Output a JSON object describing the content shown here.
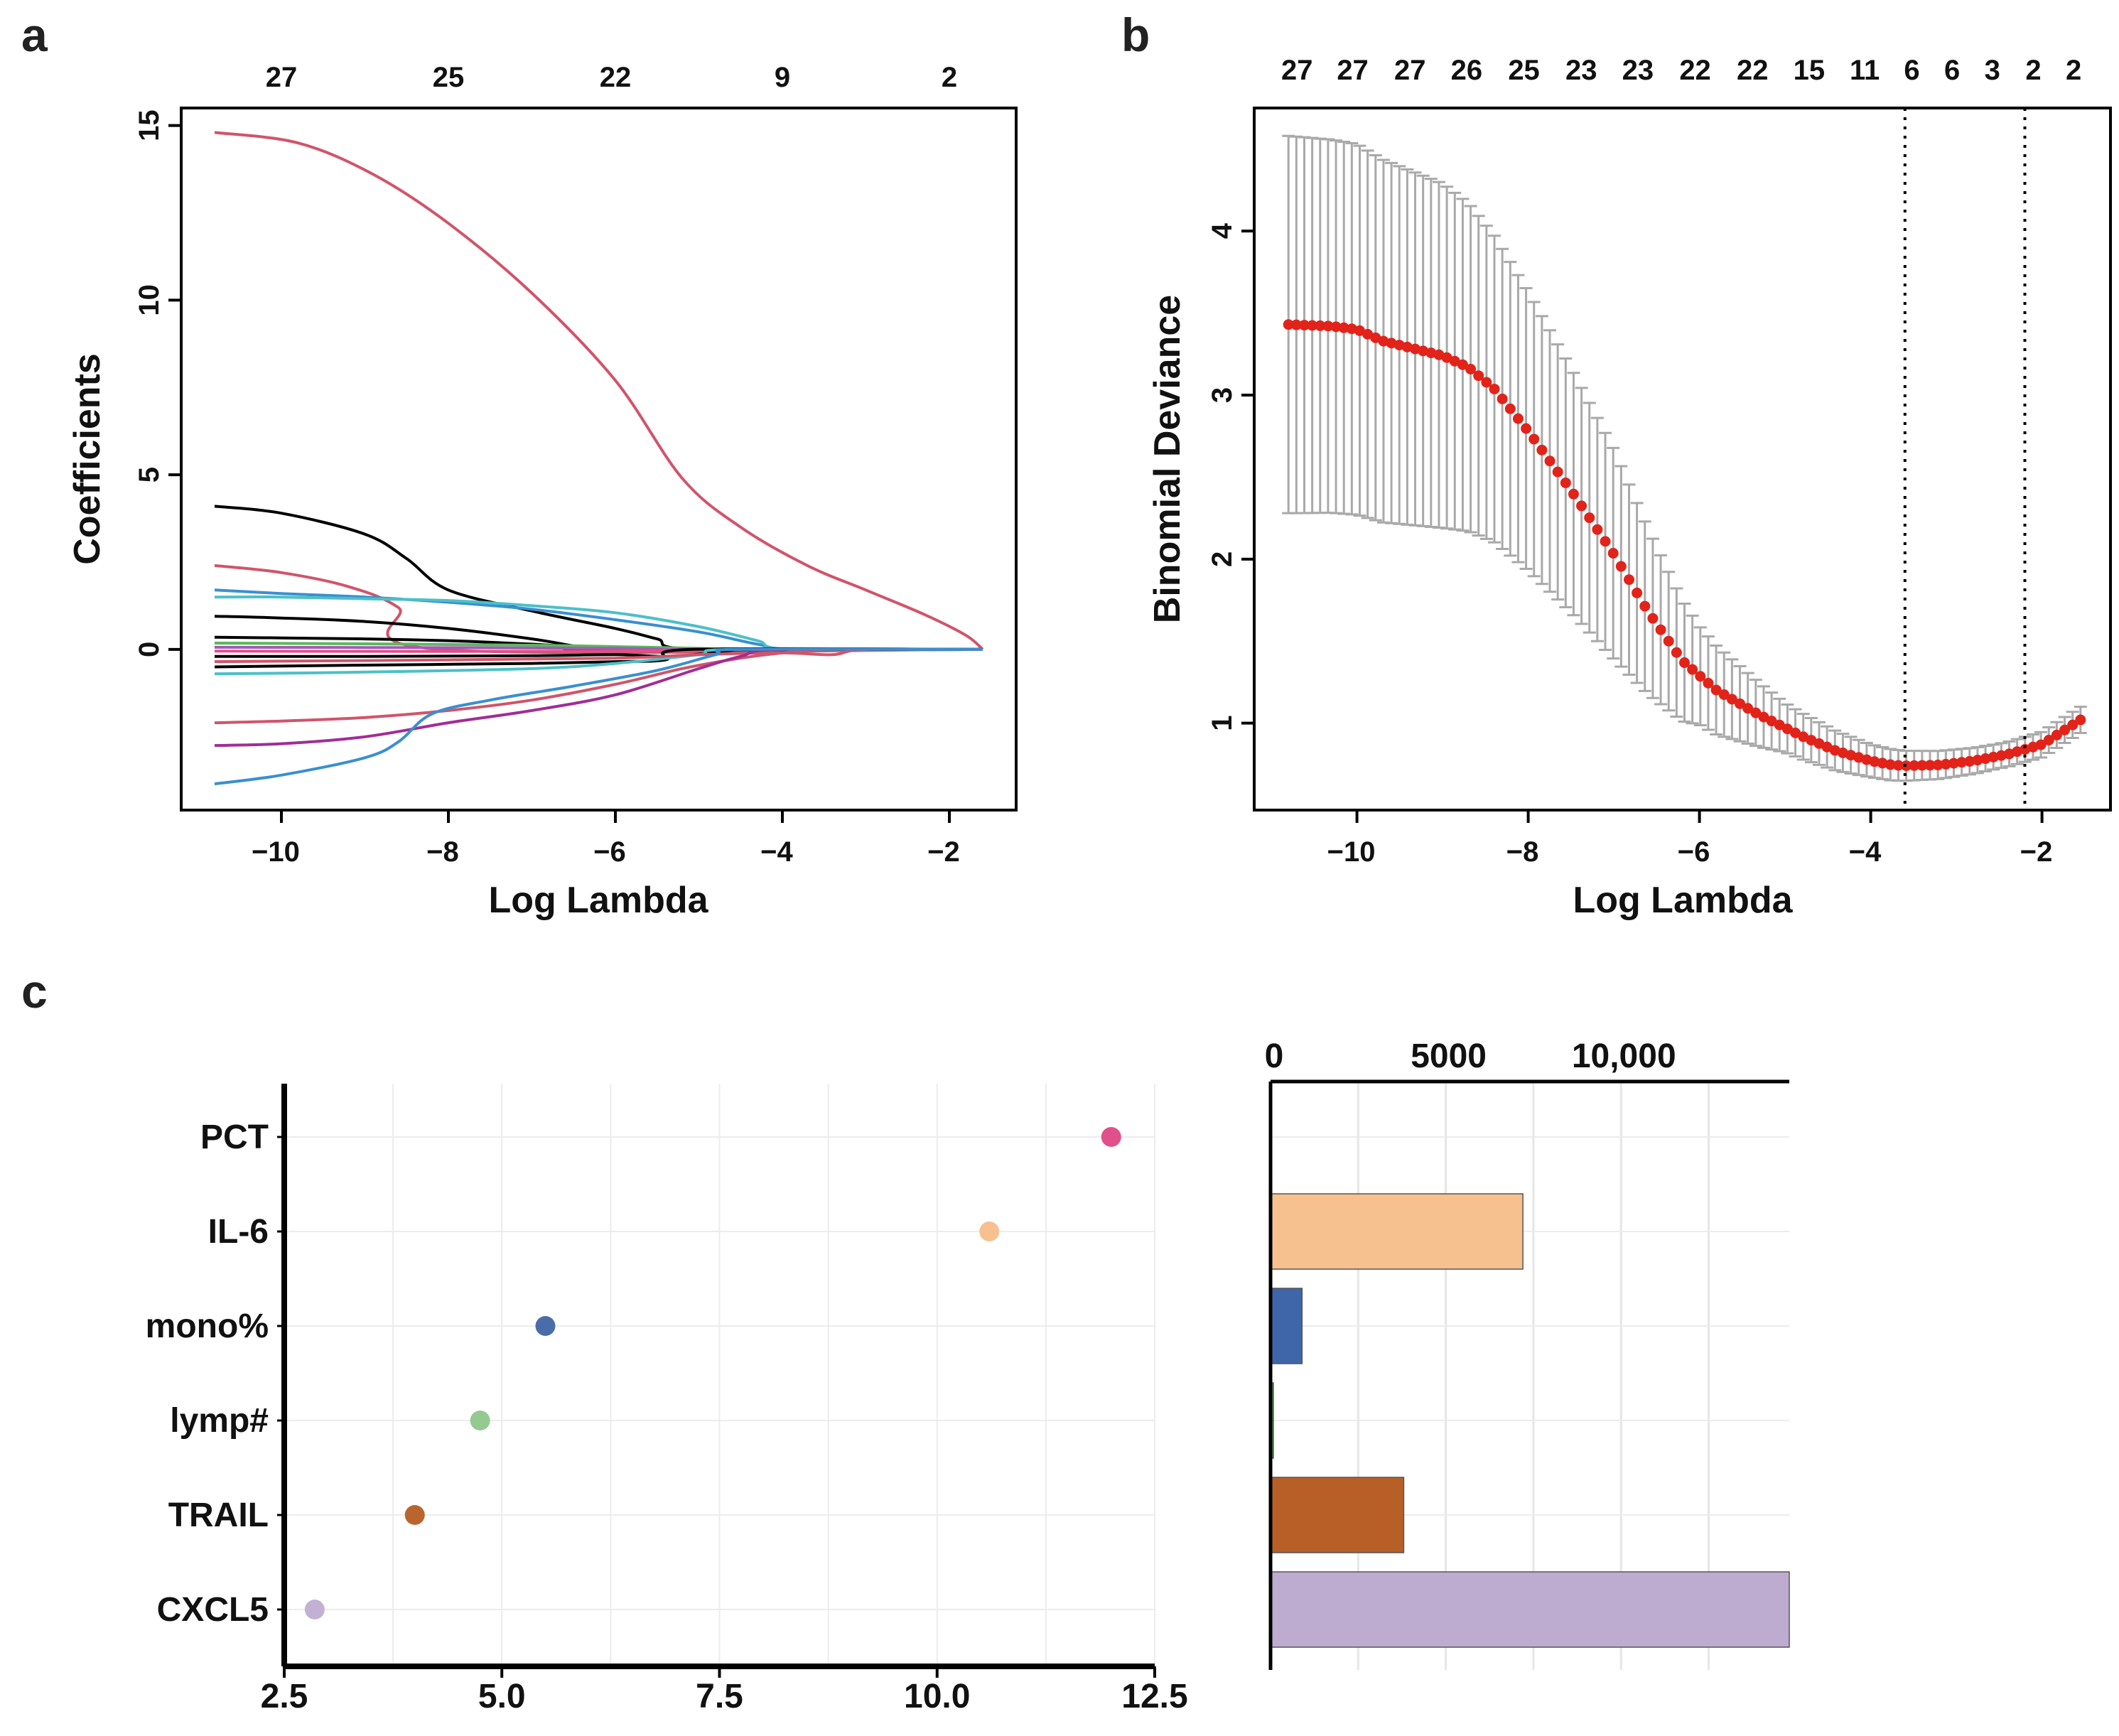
{
  "chart_data": [
    {
      "panel": "a",
      "type": "line",
      "xlabel": "Log Lambda",
      "ylabel": "Coefficients",
      "xlim": [
        -11.2,
        -1.2
      ],
      "ylim": [
        -4.6,
        15.5
      ],
      "x_ticks": [
        -10,
        -8,
        -6,
        -4,
        -2
      ],
      "x_tick_labels": [
        "−10",
        "−8",
        "−6",
        "−4",
        "−2"
      ],
      "y_ticks": [
        0,
        5,
        10,
        15
      ],
      "y_tick_labels": [
        "0",
        "5",
        "10",
        "15"
      ],
      "top_ticks": [
        -10,
        -8,
        -6,
        -4,
        -2
      ],
      "top_tick_labels": [
        "27",
        "25",
        "22",
        "9",
        "2"
      ],
      "series": [
        {
          "color": "#d1546a",
          "points": [
            [
              -10.8,
              14.8
            ],
            [
              -9.8,
              14.5
            ],
            [
              -8.9,
              13.6
            ],
            [
              -8.0,
              12.2
            ],
            [
              -7.0,
              10.2
            ],
            [
              -6.0,
              7.7
            ],
            [
              -5.2,
              4.9
            ],
            [
              -4.5,
              3.5
            ],
            [
              -3.7,
              2.4
            ],
            [
              -3.0,
              1.7
            ],
            [
              -2.3,
              1.0
            ],
            [
              -1.8,
              0.4
            ],
            [
              -1.6,
              0.0
            ]
          ]
        },
        {
          "color": "#000000",
          "points": [
            [
              -10.8,
              4.1
            ],
            [
              -10.0,
              3.9
            ],
            [
              -9.0,
              3.3
            ],
            [
              -8.5,
              2.6
            ],
            [
              -8.0,
              1.7
            ],
            [
              -7.0,
              1.1
            ],
            [
              -6.0,
              0.6
            ],
            [
              -5.5,
              0.3
            ],
            [
              -5.0,
              0.0
            ],
            [
              -1.6,
              0.0
            ]
          ]
        },
        {
          "color": "#d1546a",
          "points": [
            [
              -10.8,
              2.4
            ],
            [
              -10.0,
              2.2
            ],
            [
              -9.2,
              1.8
            ],
            [
              -8.6,
              1.2
            ],
            [
              -8.1,
              0.0
            ],
            [
              -1.6,
              0.0
            ]
          ]
        },
        {
          "color": "#3a8fd0",
          "points": [
            [
              -10.8,
              1.7
            ],
            [
              -10.0,
              1.6
            ],
            [
              -9.0,
              1.5
            ],
            [
              -8.0,
              1.35
            ],
            [
              -7.0,
              1.15
            ],
            [
              -6.0,
              0.85
            ],
            [
              -5.0,
              0.5
            ],
            [
              -4.3,
              0.15
            ],
            [
              -3.8,
              0.0
            ],
            [
              -1.6,
              0.0
            ]
          ]
        },
        {
          "color": "#4cc0c8",
          "points": [
            [
              -10.8,
              1.5
            ],
            [
              -10.0,
              1.5
            ],
            [
              -9.0,
              1.45
            ],
            [
              -8.0,
              1.4
            ],
            [
              -7.0,
              1.25
            ],
            [
              -6.0,
              1.05
            ],
            [
              -5.0,
              0.65
            ],
            [
              -4.3,
              0.25
            ],
            [
              -3.9,
              0.0
            ],
            [
              -1.6,
              0.0
            ]
          ]
        },
        {
          "color": "#000000",
          "points": [
            [
              -10.8,
              0.95
            ],
            [
              -10.0,
              0.9
            ],
            [
              -9.0,
              0.8
            ],
            [
              -8.0,
              0.6
            ],
            [
              -7.0,
              0.3
            ],
            [
              -6.5,
              0.1
            ],
            [
              -6.2,
              0.0
            ],
            [
              -1.6,
              0.0
            ]
          ]
        },
        {
          "color": "#000000",
          "points": [
            [
              -10.8,
              0.35
            ],
            [
              -10.0,
              0.33
            ],
            [
              -9.0,
              0.3
            ],
            [
              -8.0,
              0.25
            ],
            [
              -7.0,
              0.15
            ],
            [
              -6.3,
              0.05
            ],
            [
              -6.0,
              0.0
            ],
            [
              -1.6,
              0.0
            ]
          ]
        },
        {
          "color": "#5cb85c",
          "points": [
            [
              -10.8,
              0.18
            ],
            [
              -9.0,
              0.16
            ],
            [
              -7.0,
              0.12
            ],
            [
              -6.0,
              0.08
            ],
            [
              -5.0,
              0.03
            ],
            [
              -4.5,
              0.0
            ],
            [
              -1.6,
              0.0
            ]
          ]
        },
        {
          "color": "#a55ab5",
          "points": [
            [
              -10.8,
              0.06
            ],
            [
              -8.0,
              0.05
            ],
            [
              -6.0,
              0.03
            ],
            [
              -5.0,
              0.0
            ],
            [
              -1.6,
              0.0
            ]
          ]
        },
        {
          "color": "#e0508a",
          "points": [
            [
              -10.8,
              -0.05
            ],
            [
              -8.0,
              -0.06
            ],
            [
              -6.0,
              -0.05
            ],
            [
              -5.0,
              -0.02
            ],
            [
              -4.5,
              0.0
            ],
            [
              -1.6,
              0.0
            ]
          ]
        },
        {
          "color": "#000000",
          "points": [
            [
              -10.8,
              -0.2
            ],
            [
              -9.0,
              -0.2
            ],
            [
              -7.0,
              -0.18
            ],
            [
              -6.0,
              -0.15
            ],
            [
              -5.3,
              -0.2
            ],
            [
              -4.7,
              -0.05
            ],
            [
              -4.2,
              0.0
            ],
            [
              -1.6,
              0.0
            ]
          ]
        },
        {
          "color": "#000000",
          "points": [
            [
              -10.8,
              -0.5
            ],
            [
              -9.0,
              -0.45
            ],
            [
              -7.0,
              -0.4
            ],
            [
              -6.0,
              -0.35
            ],
            [
              -5.4,
              -0.3
            ],
            [
              -5.1,
              0.0
            ],
            [
              -1.6,
              0.0
            ]
          ]
        },
        {
          "color": "#4cc0c8",
          "points": [
            [
              -10.8,
              -0.7
            ],
            [
              -9.0,
              -0.65
            ],
            [
              -7.0,
              -0.55
            ],
            [
              -6.0,
              -0.4
            ],
            [
              -5.0,
              -0.15
            ],
            [
              -4.6,
              0.0
            ],
            [
              -1.6,
              0.0
            ]
          ]
        },
        {
          "color": "#d1546a",
          "points": [
            [
              -10.8,
              -0.35
            ],
            [
              -8.0,
              -0.3
            ],
            [
              -6.0,
              -0.25
            ],
            [
              -5.0,
              -0.15
            ],
            [
              -4.0,
              -0.1
            ],
            [
              -3.4,
              -0.15
            ],
            [
              -3.0,
              0.0
            ],
            [
              -1.6,
              0.0
            ]
          ]
        },
        {
          "color": "#d1546a",
          "points": [
            [
              -10.8,
              -2.1
            ],
            [
              -10.0,
              -2.05
            ],
            [
              -9.0,
              -1.95
            ],
            [
              -8.0,
              -1.75
            ],
            [
              -7.0,
              -1.45
            ],
            [
              -6.0,
              -1.0
            ],
            [
              -5.2,
              -0.55
            ],
            [
              -4.5,
              -0.25
            ],
            [
              -4.0,
              -0.1
            ],
            [
              -3.5,
              0.0
            ],
            [
              -1.6,
              0.0
            ]
          ]
        },
        {
          "color": "#a02d96",
          "points": [
            [
              -10.8,
              -2.75
            ],
            [
              -10.0,
              -2.7
            ],
            [
              -9.0,
              -2.5
            ],
            [
              -8.0,
              -2.1
            ],
            [
              -7.0,
              -1.75
            ],
            [
              -6.0,
              -1.3
            ],
            [
              -5.0,
              -0.55
            ],
            [
              -4.5,
              -0.2
            ],
            [
              -4.0,
              0.0
            ],
            [
              -1.6,
              0.0
            ]
          ]
        },
        {
          "color": "#3a8fd0",
          "points": [
            [
              -10.8,
              -3.85
            ],
            [
              -10.0,
              -3.6
            ],
            [
              -9.0,
              -3.1
            ],
            [
              -8.6,
              -2.65
            ],
            [
              -8.2,
              -1.85
            ],
            [
              -7.5,
              -1.45
            ],
            [
              -6.5,
              -1.05
            ],
            [
              -5.5,
              -0.6
            ],
            [
              -4.8,
              -0.15
            ],
            [
              -4.5,
              0.0
            ],
            [
              -1.6,
              0.0
            ]
          ]
        }
      ]
    },
    {
      "panel": "b",
      "type": "scatter",
      "xlabel": "Log Lambda",
      "ylabel": "Binomial Deviance",
      "xlim": [
        -11.2,
        -1.2
      ],
      "ylim": [
        0.47,
        4.75
      ],
      "x_ticks": [
        -10,
        -8,
        -6,
        -4,
        -2
      ],
      "x_tick_labels": [
        "−10",
        "−8",
        "−6",
        "−4",
        "−2"
      ],
      "y_ticks": [
        1,
        2,
        3,
        4
      ],
      "y_tick_labels": [
        "1",
        "2",
        "3",
        "4"
      ],
      "top_ticks": [
        -10.7,
        -10.05,
        -9.38,
        -8.72,
        -8.05,
        -7.38,
        -6.72,
        -6.05,
        -5.38,
        -4.72,
        -4.07,
        -3.52,
        -3.05,
        -2.58,
        -2.1,
        -1.63
      ],
      "top_tick_labels": [
        "27",
        "27",
        "27",
        "26",
        "25",
        "23",
        "23",
        "22",
        "22",
        "15",
        "11",
        "6",
        "6",
        "3",
        "2",
        "2"
      ],
      "vlines": [
        -3.6,
        -2.2
      ],
      "x_range": [
        -10.8,
        -1.55
      ],
      "n_points": 101,
      "mean_curve": [
        [
          -10.8,
          3.43
        ],
        [
          -10.3,
          3.42
        ],
        [
          -10.0,
          3.4
        ],
        [
          -9.7,
          3.33
        ],
        [
          -9.0,
          3.24
        ],
        [
          -8.7,
          3.17
        ],
        [
          -8.4,
          3.04
        ],
        [
          -8.0,
          2.78
        ],
        [
          -7.5,
          2.42
        ],
        [
          -7.0,
          2.03
        ],
        [
          -6.6,
          1.68
        ],
        [
          -6.2,
          1.38
        ],
        [
          -5.8,
          1.2
        ],
        [
          -5.3,
          1.05
        ],
        [
          -4.8,
          0.92
        ],
        [
          -4.4,
          0.83
        ],
        [
          -4.0,
          0.77
        ],
        [
          -3.75,
          0.745
        ],
        [
          -3.6,
          0.74
        ],
        [
          -3.2,
          0.745
        ],
        [
          -2.8,
          0.77
        ],
        [
          -2.4,
          0.81
        ],
        [
          -2.0,
          0.87
        ],
        [
          -1.55,
          1.02
        ]
      ],
      "error_half_width": [
        [
          -10.8,
          1.15
        ],
        [
          -10.0,
          1.13
        ],
        [
          -9.0,
          1.05
        ],
        [
          -8.7,
          1.0
        ],
        [
          -8.0,
          0.85
        ],
        [
          -7.0,
          0.64
        ],
        [
          -6.0,
          0.3
        ],
        [
          -5.0,
          0.15
        ],
        [
          -4.0,
          0.1
        ],
        [
          -3.5,
          0.09
        ],
        [
          -2.5,
          0.075
        ],
        [
          -1.55,
          0.08
        ]
      ]
    },
    {
      "panel": "c",
      "type": "scatter",
      "categories": [
        "PCT",
        "IL-6",
        "mono%",
        "lymp#",
        "TRAIL",
        "CXCL5"
      ],
      "values": [
        12.0,
        10.6,
        5.5,
        4.75,
        4.0,
        2.85
      ],
      "colors": [
        "#e0508a",
        "#f7c08f",
        "#4a6daa",
        "#94c98f",
        "#b9652d",
        "#c3b1d4"
      ],
      "xlim": [
        2.5,
        12.5
      ],
      "x_ticks": [
        2.5,
        5.0,
        7.5,
        10.0,
        12.5
      ],
      "x_tick_labels": [
        "2.5",
        "5.0",
        "7.5",
        "10.0",
        "12.5"
      ],
      "title": "",
      "xlabel": "",
      "ylabel": ""
    },
    {
      "panel": "c",
      "type": "bar",
      "orientation": "horizontal",
      "categories": [
        "PCT",
        "IL-6",
        "mono%",
        "lymp#",
        "TRAIL",
        "CXCL5"
      ],
      "values": [
        0,
        7200,
        900,
        80,
        3800,
        14800
      ],
      "colors": [
        "#e0508a",
        "#f7c08f",
        "#3e66a8",
        "#5a9a4f",
        "#b75f27",
        "#bdaccf"
      ],
      "xlim": [
        0,
        14800
      ],
      "x_ticks": [
        0,
        5000,
        10000
      ],
      "x_tick_labels": [
        "0",
        "5000",
        "10,000"
      ],
      "grid_ticks": [
        2500,
        5000,
        7500,
        10000,
        12500
      ],
      "title": "",
      "xlabel": "",
      "ylabel": ""
    }
  ],
  "panel_labels": {
    "a": "a",
    "b": "b",
    "c": "c"
  }
}
